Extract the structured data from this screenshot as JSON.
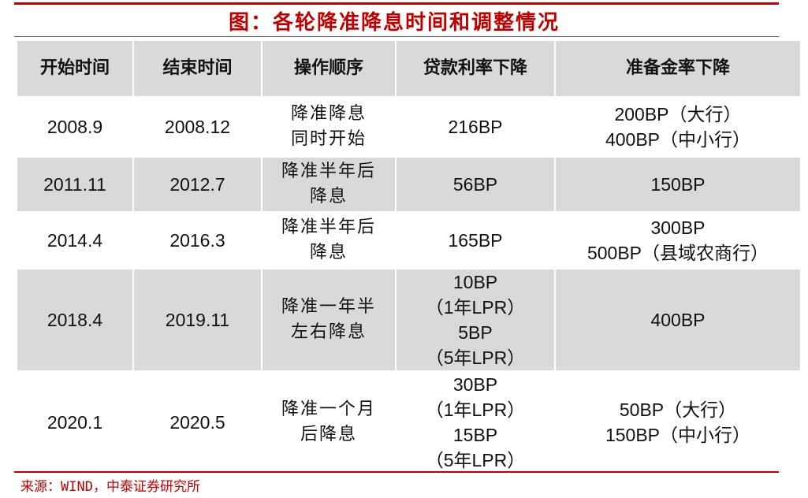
{
  "title": "图：各轮降准降息时间和调整情况",
  "headers": [
    "开始时间",
    "结束时间",
    "操作顺序",
    "贷款利率下降",
    "准备金率下降"
  ],
  "rows": [
    {
      "start": "2008.9",
      "end": "2008.12",
      "order": [
        "降准降息",
        "同时开始"
      ],
      "loan": [
        "216BP"
      ],
      "rrr": [
        "200BP（大行）",
        "400BP（中小行）"
      ]
    },
    {
      "start": "2011.11",
      "end": "2012.7",
      "order": [
        "降准半年后",
        "降息"
      ],
      "loan": [
        "56BP"
      ],
      "rrr": [
        "150BP"
      ]
    },
    {
      "start": "2014.4",
      "end": "2016.3",
      "order": [
        "降准半年后",
        "降息"
      ],
      "loan": [
        "165BP"
      ],
      "rrr": [
        "300BP",
        "500BP（县域农商行）"
      ]
    },
    {
      "start": "2018.4",
      "end": "2019.11",
      "order": [
        "降准一年半",
        "左右降息"
      ],
      "loan": [
        "10BP",
        "（1年LPR）",
        "5BP",
        "（5年LPR）"
      ],
      "rrr": [
        "400BP"
      ]
    },
    {
      "start": "2020.1",
      "end": "2020.5",
      "order": [
        "降准一个月",
        "后降息"
      ],
      "loan": [
        "30BP",
        "（1年LPR）",
        "15BP",
        "（5年LPR）"
      ],
      "rrr": [
        "50BP（大行）",
        "150BP（中小行）"
      ]
    }
  ],
  "source": "来源：WIND，中泰证券研究所",
  "colors": {
    "accent": "#c00000",
    "shade": "#d9d9d9"
  }
}
